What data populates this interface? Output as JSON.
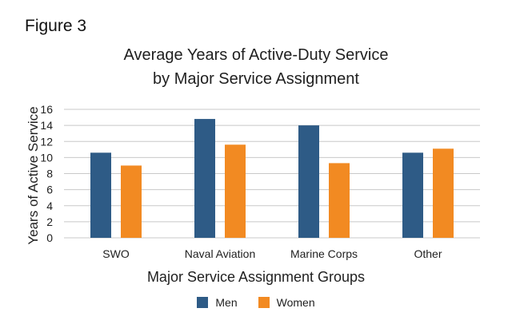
{
  "figure_label": "Figure 3",
  "colors": {
    "men": "#2e5b86",
    "women": "#f28a22",
    "grid": "#c8c8c8"
  },
  "chart_data": {
    "type": "bar",
    "title": [
      "Average Years of Active-Duty Service",
      "by Major Service Assignment"
    ],
    "xlabel": "Major Service Assignment Groups",
    "ylabel": "Years of Active Service",
    "categories": [
      "SWO",
      "Naval Aviation",
      "Marine Corps",
      "Other"
    ],
    "series": [
      {
        "name": "Men",
        "values": [
          10.6,
          14.8,
          14.0,
          10.6
        ]
      },
      {
        "name": "Women",
        "values": [
          9.0,
          11.6,
          9.3,
          11.1
        ]
      }
    ],
    "ylim": [
      0,
      16
    ],
    "yticks": [
      0,
      2,
      4,
      6,
      8,
      10,
      12,
      14,
      16
    ],
    "grid": true,
    "legend": "bottom-center"
  }
}
